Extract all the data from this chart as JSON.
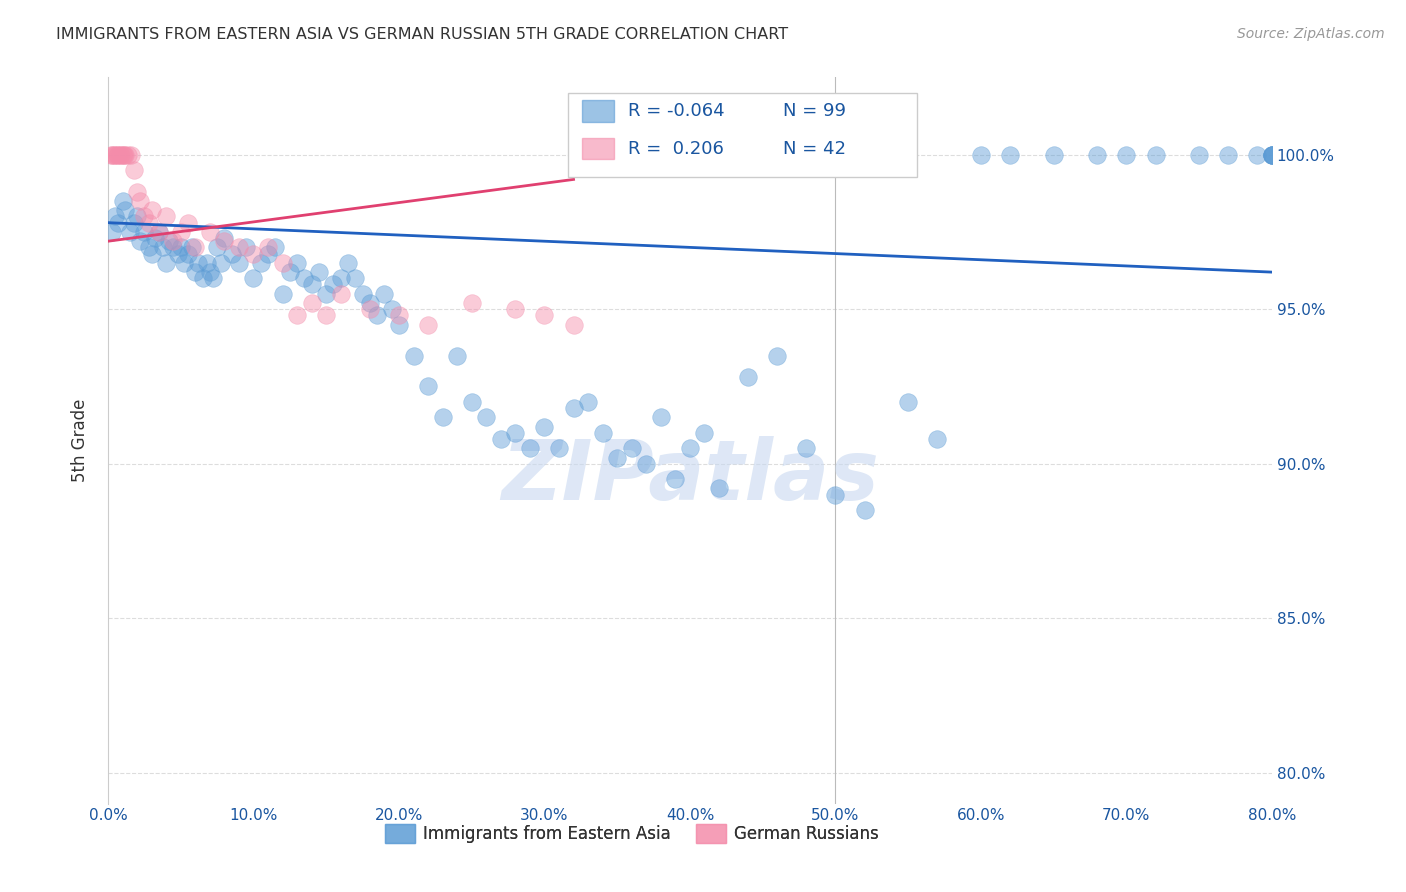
{
  "title": "IMMIGRANTS FROM EASTERN ASIA VS GERMAN RUSSIAN 5TH GRADE CORRELATION CHART",
  "source": "Source: ZipAtlas.com",
  "ylabel": "5th Grade",
  "y_ticks": [
    80.0,
    85.0,
    90.0,
    95.0,
    100.0
  ],
  "x_lim": [
    0.0,
    80.0
  ],
  "y_lim": [
    79.0,
    102.5
  ],
  "blue_scatter_x": [
    0.3,
    0.5,
    0.7,
    1.0,
    1.2,
    1.5,
    1.8,
    2.0,
    2.2,
    2.5,
    2.8,
    3.0,
    3.2,
    3.5,
    3.8,
    4.0,
    4.2,
    4.5,
    4.8,
    5.0,
    5.2,
    5.5,
    5.8,
    6.0,
    6.2,
    6.5,
    6.8,
    7.0,
    7.2,
    7.5,
    7.8,
    8.0,
    8.5,
    9.0,
    9.5,
    10.0,
    10.5,
    11.0,
    11.5,
    12.0,
    12.5,
    13.0,
    13.5,
    14.0,
    14.5,
    15.0,
    15.5,
    16.0,
    16.5,
    17.0,
    17.5,
    18.0,
    18.5,
    19.0,
    19.5,
    20.0,
    21.0,
    22.0,
    23.0,
    24.0,
    25.0,
    26.0,
    27.0,
    28.0,
    29.0,
    30.0,
    31.0,
    32.0,
    33.0,
    34.0,
    35.0,
    36.0,
    37.0,
    38.0,
    39.0,
    40.0,
    41.0,
    42.0,
    44.0,
    46.0,
    48.0,
    50.0,
    52.0,
    55.0,
    57.0,
    60.0,
    62.0,
    65.0,
    68.0,
    70.0,
    72.0,
    75.0,
    77.0,
    79.0,
    80.0,
    80.0,
    80.0,
    80.0,
    80.0
  ],
  "blue_scatter_y": [
    97.5,
    98.0,
    97.8,
    98.5,
    98.2,
    97.5,
    97.8,
    98.0,
    97.2,
    97.5,
    97.0,
    96.8,
    97.3,
    97.5,
    97.0,
    96.5,
    97.2,
    97.0,
    96.8,
    97.0,
    96.5,
    96.8,
    97.0,
    96.2,
    96.5,
    96.0,
    96.5,
    96.2,
    96.0,
    97.0,
    96.5,
    97.3,
    96.8,
    96.5,
    97.0,
    96.0,
    96.5,
    96.8,
    97.0,
    95.5,
    96.2,
    96.5,
    96.0,
    95.8,
    96.2,
    95.5,
    95.8,
    96.0,
    96.5,
    96.0,
    95.5,
    95.2,
    94.8,
    95.5,
    95.0,
    94.5,
    93.5,
    92.5,
    91.5,
    93.5,
    92.0,
    91.5,
    90.8,
    91.0,
    90.5,
    91.2,
    90.5,
    91.8,
    92.0,
    91.0,
    90.2,
    90.5,
    90.0,
    91.5,
    89.5,
    90.5,
    91.0,
    89.2,
    92.8,
    93.5,
    90.5,
    89.0,
    88.5,
    92.0,
    90.8,
    100.0,
    100.0,
    100.0,
    100.0,
    100.0,
    100.0,
    100.0,
    100.0,
    100.0,
    100.0,
    100.0,
    100.0,
    100.0,
    100.0
  ],
  "pink_scatter_x": [
    0.2,
    0.3,
    0.4,
    0.5,
    0.6,
    0.7,
    0.8,
    0.9,
    1.0,
    1.1,
    1.2,
    1.4,
    1.6,
    1.8,
    2.0,
    2.2,
    2.5,
    2.8,
    3.0,
    3.5,
    4.0,
    4.5,
    5.0,
    5.5,
    6.0,
    7.0,
    8.0,
    9.0,
    10.0,
    11.0,
    12.0,
    13.0,
    14.0,
    15.0,
    16.0,
    18.0,
    20.0,
    22.0,
    25.0,
    28.0,
    30.0,
    32.0
  ],
  "pink_scatter_y": [
    100.0,
    100.0,
    100.0,
    100.0,
    100.0,
    100.0,
    100.0,
    100.0,
    100.0,
    100.0,
    100.0,
    100.0,
    100.0,
    99.5,
    98.8,
    98.5,
    98.0,
    97.8,
    98.2,
    97.5,
    98.0,
    97.2,
    97.5,
    97.8,
    97.0,
    97.5,
    97.2,
    97.0,
    96.8,
    97.0,
    96.5,
    94.8,
    95.2,
    94.8,
    95.5,
    95.0,
    94.8,
    94.5,
    95.2,
    95.0,
    94.8,
    94.5
  ],
  "blue_line_x": [
    0.0,
    80.0
  ],
  "blue_line_y": [
    97.8,
    96.2
  ],
  "pink_line_x": [
    0.0,
    32.0
  ],
  "pink_line_y": [
    97.2,
    99.2
  ],
  "blue_color": "#5b9bd5",
  "pink_color": "#f48caa",
  "blue_line_color": "#2060c0",
  "pink_line_color": "#e04070",
  "title_color": "#333333",
  "axis_color": "#1a56a0",
  "grid_color": "#dddddd",
  "watermark": "ZIPatlas",
  "watermark_color": "#c8d8f0",
  "r_blue": "-0.064",
  "n_blue": "99",
  "r_pink": " 0.206",
  "n_pink": "42"
}
